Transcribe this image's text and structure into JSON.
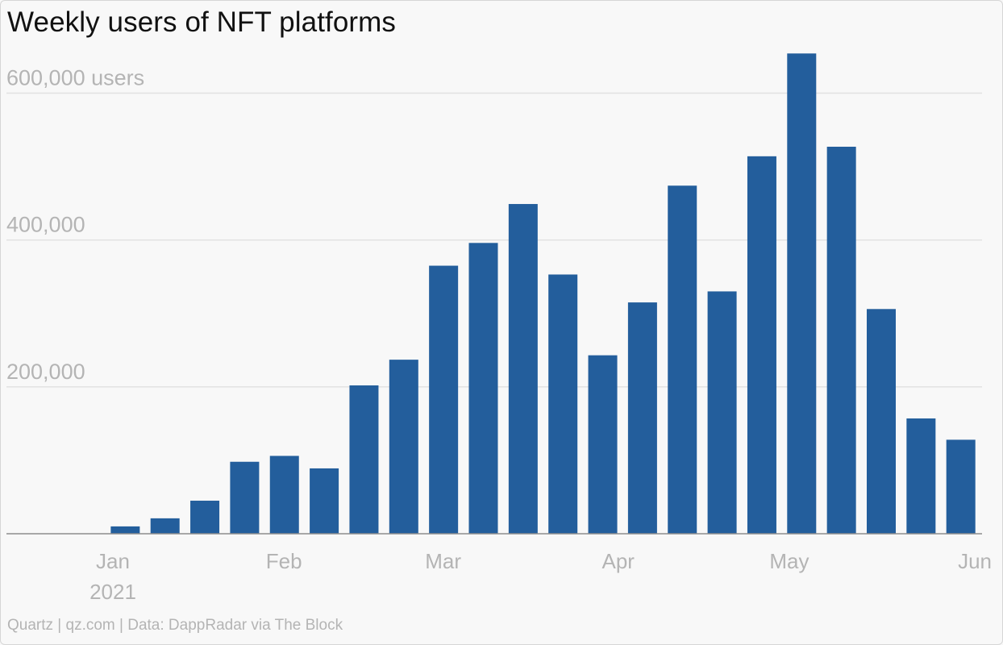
{
  "title": "Weekly users of NFT platforms",
  "credit": "Quartz | qz.com | Data: DappRadar via The Block",
  "colors": {
    "bar": "#235e9c",
    "tick": "#b4b4b4",
    "grid": "#e1e1e1",
    "baseline": "#8e8e8e",
    "background": "#f8f8f8"
  },
  "chart_data": {
    "type": "bar",
    "title": "Weekly users of NFT platforms",
    "xlabel": "",
    "ylabel": "",
    "ylim": [
      0,
      650000
    ],
    "y_ticks": [
      {
        "value": 200000,
        "label": "200,000"
      },
      {
        "value": 400000,
        "label": "400,000"
      },
      {
        "value": 600000,
        "label": "600,000 users"
      }
    ],
    "x_ticks": [
      {
        "label": "Jan",
        "sublabel": "2021",
        "position": 0
      },
      {
        "label": "Feb",
        "position": 4.3
      },
      {
        "label": "Mar",
        "position": 8.3
      },
      {
        "label": "Apr",
        "position": 12.7
      },
      {
        "label": "May",
        "position": 17.0
      },
      {
        "label": "Jun",
        "position": 21.3
      }
    ],
    "values": [
      0,
      10000,
      21000,
      45000,
      98000,
      106000,
      89000,
      202000,
      237000,
      365000,
      396000,
      449000,
      353000,
      243000,
      315000,
      474000,
      330000,
      514000,
      654000,
      527000,
      306000,
      157000,
      128000
    ],
    "grid": true,
    "legend": "none"
  }
}
